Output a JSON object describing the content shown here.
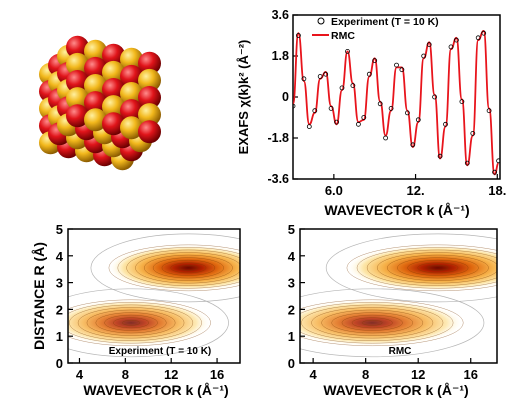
{
  "chart_data": [
    {
      "type": "line",
      "ylabel": "EXAFS χ(k)k² (Å⁻²)",
      "xlabel": "WAVEVECTOR k (Å⁻¹)",
      "x_ticks": [
        "6.0",
        "12.",
        "18."
      ],
      "y_ticks": [
        "3.6",
        "1.8",
        "0",
        "-1.8",
        "-3.6"
      ],
      "xlim": [
        3.0,
        18.2
      ],
      "ylim": [
        -3.6,
        3.6
      ],
      "legend": "top-left",
      "series": [
        {
          "name": "Experiment (T = 10 K)",
          "style": "open-circles",
          "color": "#000000",
          "x": [
            3.0,
            3.4,
            3.8,
            4.2,
            4.6,
            5.0,
            5.4,
            5.8,
            6.2,
            6.6,
            7.0,
            7.4,
            7.8,
            8.2,
            8.6,
            9.0,
            9.4,
            9.8,
            10.2,
            10.6,
            11.0,
            11.4,
            11.8,
            12.2,
            12.6,
            13.0,
            13.4,
            13.8,
            14.2,
            14.6,
            15.0,
            15.4,
            15.8,
            16.2,
            16.6,
            17.0,
            17.4,
            17.8,
            18.1
          ],
          "y": [
            -0.4,
            2.7,
            0.8,
            -1.3,
            -0.6,
            0.9,
            1.0,
            -0.5,
            -1.1,
            0.4,
            2.0,
            0.5,
            -1.2,
            -0.9,
            1.0,
            1.6,
            -0.3,
            -1.8,
            -0.5,
            1.4,
            1.2,
            -0.7,
            -2.1,
            -1.0,
            1.8,
            2.3,
            0.0,
            -2.6,
            -1.2,
            2.2,
            2.5,
            -0.2,
            -2.9,
            -1.6,
            2.6,
            2.8,
            -0.6,
            -3.3,
            -2.8
          ]
        },
        {
          "name": "RMC",
          "style": "line",
          "color": "#e8141c",
          "x": [
            3.0,
            3.4,
            3.8,
            4.2,
            4.6,
            5.0,
            5.4,
            5.8,
            6.2,
            6.6,
            7.0,
            7.4,
            7.8,
            8.2,
            8.6,
            9.0,
            9.4,
            9.8,
            10.2,
            10.6,
            11.0,
            11.4,
            11.8,
            12.2,
            12.6,
            13.0,
            13.4,
            13.8,
            14.2,
            14.6,
            15.0,
            15.4,
            15.8,
            16.2,
            16.6,
            17.0,
            17.4,
            17.8,
            18.1
          ],
          "y": [
            -0.3,
            2.8,
            0.7,
            -1.2,
            -0.7,
            0.8,
            1.1,
            -0.4,
            -1.2,
            0.3,
            2.0,
            0.6,
            -1.1,
            -1.0,
            0.9,
            1.7,
            -0.2,
            -1.7,
            -0.6,
            1.3,
            1.3,
            -0.6,
            -2.2,
            -1.1,
            1.7,
            2.4,
            0.1,
            -2.7,
            -1.3,
            2.1,
            2.6,
            -0.1,
            -3.0,
            -1.7,
            2.5,
            2.9,
            -0.5,
            -3.4,
            -2.9
          ]
        }
      ]
    },
    {
      "type": "heatmap",
      "annotation": "Experiment (T = 10 K)",
      "xlabel": "WAVEVECTOR k (Å⁻¹)",
      "ylabel": "DISTANCE R (Å)",
      "x_ticks": [
        "4",
        "8",
        "12",
        "16"
      ],
      "y_ticks": [
        "0",
        "1",
        "2",
        "3",
        "4",
        "5"
      ],
      "xlim": [
        3,
        18
      ],
      "ylim": [
        0,
        5
      ],
      "peaks": [
        {
          "k": 13.5,
          "R": 3.55,
          "intensity": 1.0
        },
        {
          "k": 8.5,
          "R": 1.5,
          "intensity": 0.85
        }
      ]
    },
    {
      "type": "heatmap",
      "annotation": "RMC",
      "xlabel": "WAVEVECTOR k (Å⁻¹)",
      "ylabel": "",
      "x_ticks": [
        "4",
        "8",
        "12",
        "16"
      ],
      "y_ticks": [
        "0",
        "1",
        "2",
        "3",
        "4",
        "5"
      ],
      "xlim": [
        3,
        18
      ],
      "ylim": [
        0,
        5
      ],
      "peaks": [
        {
          "k": 13.5,
          "R": 3.55,
          "intensity": 1.0
        },
        {
          "k": 8.5,
          "R": 1.5,
          "intensity": 0.85
        }
      ]
    }
  ],
  "colors": {
    "sphere_red": "#e0141a",
    "sphere_gold": "#f2b81c",
    "rmc_line": "#e8141c",
    "contour": "#b5b5b5"
  }
}
